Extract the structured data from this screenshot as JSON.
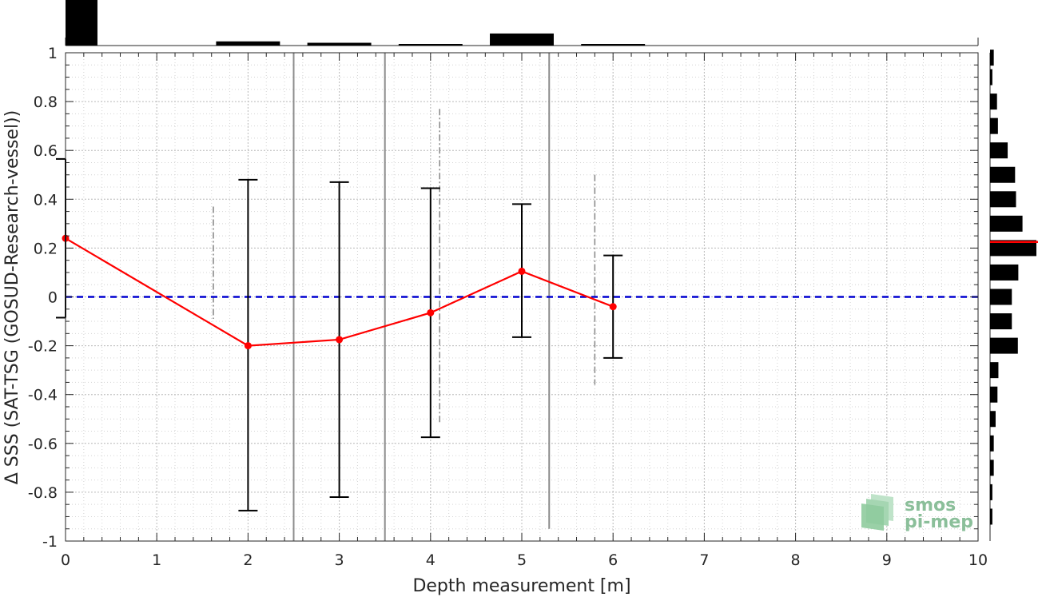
{
  "chart_data": {
    "type": "line",
    "xlabel": "Depth measurement [m]",
    "ylabel": "Δ SSS (SAT-TSG (GOSUD-Research-vessel))",
    "xlim": [
      0,
      10
    ],
    "ylim": [
      -1,
      1
    ],
    "x_ticks": [
      "0",
      "1",
      "2",
      "3",
      "4",
      "5",
      "6",
      "7",
      "8",
      "9",
      "10"
    ],
    "y_ticks": [
      "-1",
      "-0.8",
      "-0.6",
      "-0.4",
      "-0.2",
      "0",
      "0.2",
      "0.4",
      "0.6",
      "0.8",
      "1"
    ],
    "grid": true,
    "zero_line": {
      "y": 0,
      "color": "#0000d0",
      "style": "dashed"
    },
    "series": [
      {
        "x": [
          0,
          2,
          3,
          4,
          5,
          6
        ],
        "y": [
          0.24,
          -0.2,
          -0.175,
          -0.065,
          0.105,
          -0.04
        ],
        "color": "#ff0000",
        "error_low": [
          null,
          -0.875,
          -0.82,
          -0.575,
          -0.165,
          -0.25
        ],
        "error_high": [
          null,
          0.48,
          0.47,
          0.445,
          0.38,
          0.17
        ]
      }
    ],
    "left_edge_bracket": {
      "low": -0.085,
      "high": 0.565
    },
    "gray_lines": [
      {
        "x": 1.62,
        "low": -0.09,
        "high": 0.37,
        "style": "dashdot"
      },
      {
        "x": 2.5,
        "low": -1,
        "high": 1,
        "style": "solid"
      },
      {
        "x": 3.5,
        "low": -1,
        "high": 1,
        "style": "solid"
      },
      {
        "x": 4.1,
        "low": -0.52,
        "high": 0.77,
        "style": "dashdot"
      },
      {
        "x": 5.3,
        "low": -0.95,
        "high": 1,
        "style": "solid"
      },
      {
        "x": 5.8,
        "low": -0.36,
        "high": 0.5,
        "style": "dashdot"
      }
    ],
    "top_histogram": {
      "bins": [
        [
          0,
          0.35
        ],
        [
          1.65,
          2.35
        ],
        [
          2.65,
          3.35
        ],
        [
          3.65,
          4.35
        ],
        [
          4.65,
          5.35
        ],
        [
          5.65,
          6.35
        ]
      ],
      "counts": [
        100,
        9,
        6,
        2,
        26,
        1
      ]
    },
    "right_histogram": {
      "bin_centers": [
        0.98,
        0.9,
        0.8,
        0.7,
        0.6,
        0.5,
        0.4,
        0.3,
        0.2,
        0.1,
        0,
        -0.1,
        -0.2,
        -0.3,
        -0.4,
        -0.5,
        -0.6,
        -0.7,
        -0.8,
        -0.9
      ],
      "counts": [
        8,
        5,
        15,
        17,
        38,
        54,
        56,
        70,
        100,
        61,
        47,
        47,
        60,
        18,
        16,
        12,
        8,
        8,
        5,
        5
      ],
      "mean_marker": 0.225,
      "mean_color": "#ff0000"
    }
  },
  "logo": {
    "line1": "smos",
    "line2": "pi-mep"
  }
}
